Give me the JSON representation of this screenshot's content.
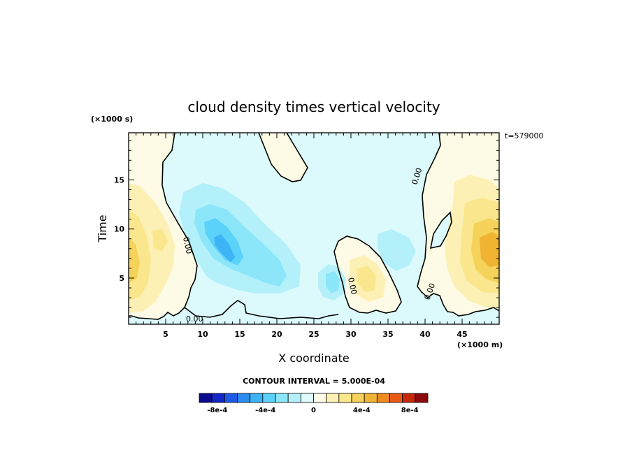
{
  "chart_data": {
    "type": "heatmap",
    "title": "cloud density times vertical velocity",
    "xlabel": "X coordinate",
    "ylabel": "Time",
    "x_unit_label": "(×1000 m)",
    "y_unit_label": "(×1000 s)",
    "corner_label": "t=579000",
    "xlim": [
      0,
      50
    ],
    "ylim": [
      0.3,
      19.8
    ],
    "x_ticks": [
      "5",
      "10",
      "15",
      "20",
      "25",
      "30",
      "35",
      "40",
      "45"
    ],
    "y_ticks": [
      "5",
      "10",
      "15"
    ],
    "contour_label": "0.00",
    "contour_interval_text": "CONTOUR INTERVAL = 5.000E-04",
    "colorbar": {
      "colors": [
        "#0a0a8c",
        "#1428c8",
        "#1e5ae6",
        "#2d8cf0",
        "#3cb4f5",
        "#5ad2fa",
        "#8ce6fa",
        "#b4f0fa",
        "#dcfafc",
        "#fdfae6",
        "#fdf0b4",
        "#fae68c",
        "#f5d25a",
        "#f0b432",
        "#f08c1e",
        "#e65a14",
        "#c8280a",
        "#8c0a0a"
      ],
      "tick_labels": [
        "-8e-4",
        "-4e-4",
        "0",
        "4e-4",
        "8e-4"
      ],
      "tick_values": [
        -0.0008,
        -0.0004,
        0,
        0.0004,
        0.0008
      ],
      "range": [
        -0.00095,
        0.00095
      ]
    },
    "features": [
      {
        "x": 13.0,
        "y": 8.0,
        "value": -0.00045
      },
      {
        "x": 11.5,
        "y": 11.0,
        "value": -0.0002
      },
      {
        "x": 17.0,
        "y": 6.0,
        "value": -0.00025
      },
      {
        "x": 20.0,
        "y": 4.8,
        "value": -0.0002
      },
      {
        "x": 27.5,
        "y": 4.5,
        "value": -0.00025
      },
      {
        "x": 35.5,
        "y": 6.5,
        "value": -0.00015
      },
      {
        "x": 1.0,
        "y": 6.0,
        "value": 0.0003
      },
      {
        "x": 3.5,
        "y": 9.5,
        "value": 0.0002
      },
      {
        "x": 2.5,
        "y": 3.0,
        "value": 0.00025
      },
      {
        "x": 32.0,
        "y": 4.0,
        "value": 0.00022
      },
      {
        "x": 48.0,
        "y": 8.0,
        "value": 0.00035
      },
      {
        "x": 46.0,
        "y": 12.0,
        "value": 0.0002
      }
    ]
  }
}
